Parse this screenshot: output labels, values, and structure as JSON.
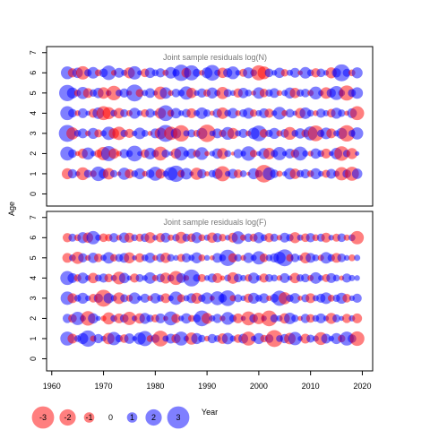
{
  "chart_data": {
    "type": "scatter",
    "encoding": "bubble",
    "x_label": "Year",
    "y_label": "Age",
    "x_ticks": [
      1960,
      1970,
      1980,
      1990,
      2000,
      2010,
      2020
    ],
    "y_ticks": [
      0,
      1,
      2,
      3,
      4,
      5,
      6,
      7
    ],
    "xlim": [
      1959,
      2022
    ],
    "ylim": [
      -0.6,
      7.3
    ],
    "years": [
      1963,
      1964,
      1965,
      1966,
      1967,
      1968,
      1969,
      1970,
      1971,
      1972,
      1973,
      1974,
      1975,
      1976,
      1977,
      1978,
      1979,
      1980,
      1981,
      1982,
      1983,
      1984,
      1985,
      1986,
      1987,
      1988,
      1989,
      1990,
      1991,
      1992,
      1993,
      1994,
      1995,
      1996,
      1997,
      1998,
      1999,
      2000,
      2001,
      2002,
      2003,
      2004,
      2005,
      2006,
      2007,
      2008,
      2009,
      2010,
      2011,
      2012,
      2013,
      2014,
      2015,
      2016,
      2017,
      2018,
      2019
    ],
    "ages": [
      1,
      2,
      3,
      4,
      5,
      6
    ],
    "colors": {
      "negative": "#ff0000",
      "positive": "#0000ff"
    },
    "opacity": 0.5,
    "panels": [
      {
        "title": "Joint sample residuals log(N)",
        "residuals": {
          "1": [
            -1.5,
            1.2,
            0.5,
            -1.8,
            1.0,
            -0.8,
            2.1,
            1.3,
            -1.6,
            0.9,
            -0.4,
            1.7,
            -1.2,
            0.8,
            1.5,
            -0.6,
            1.1,
            2.0,
            -1.3,
            0.7,
            1.9,
            2.4,
            -0.9,
            1.6,
            0.4,
            -1.7,
            1.2,
            -0.5,
            0.9,
            1.4,
            -2.2,
            0.6,
            1.3,
            -1.1,
            0.8,
            -0.3,
            1.5,
            0.9,
            -2.6,
            1.8,
            1.1,
            -0.7,
            0.5,
            1.6,
            -1.4,
            0.9,
            1.2,
            -0.8,
            1.5,
            0.6,
            -1.0,
            1.3,
            0.7,
            -1.9,
            1.1,
            -2.0,
            1.4
          ],
          "2": [
            2.0,
            1.1,
            -0.5,
            -1.3,
            1.7,
            0.6,
            -1.0,
            -1.9,
            2.2,
            -1.4,
            -0.6,
            1.2,
            0.8,
            2.3,
            0.5,
            -1.1,
            1.6,
            0.9,
            -2.0,
            1.0,
            0.4,
            -1.4,
            2.0,
            0.7,
            1.3,
            -0.9,
            1.8,
            -0.5,
            0.6,
            1.4,
            -1.5,
            0.8,
            -0.3,
            1.2,
            0.6,
            2.1,
            -0.9,
            0.5,
            1.5,
            -1.6,
            0.9,
            1.9,
            0.5,
            1.3,
            -1.1,
            2.0,
            0.7,
            -0.6,
            1.4,
            0.8,
            -1.3,
            0.5,
            1.6,
            -2.1,
            0.9,
            -1.5,
            0.4
          ],
          "3": [
            2.5,
            -1.7,
            0.8,
            1.3,
            -0.6,
            1.5,
            -1.0,
            0.7,
            1.9,
            -1.4,
            -1.9,
            0.9,
            -1.2,
            0.6,
            1.6,
            0.8,
            -0.5,
            1.3,
            -1.6,
            2.5,
            -1.9,
            1.4,
            -2.4,
            0.7,
            1.0,
            -0.8,
            1.5,
            -2.6,
            0.6,
            1.3,
            -0.9,
            1.8,
            -1.5,
            0.7,
            1.2,
            -0.6,
            1.6,
            2.3,
            -1.1,
            0.9,
            1.5,
            -0.7,
            1.1,
            -1.8,
            0.8,
            1.4,
            -1.0,
            2.0,
            -2.3,
            0.9,
            1.6,
            -1.3,
            0.7,
            1.5,
            -2.4,
            0.8,
            1.7
          ],
          "4": [
            2.0,
            1.1,
            -0.6,
            1.3,
            0.5,
            -1.2,
            1.6,
            -2.0,
            -1.7,
            0.8,
            -1.4,
            1.0,
            -0.7,
            1.5,
            0.6,
            -1.0,
            1.2,
            0.5,
            -1.5,
            2.3,
            -0.8,
            1.4,
            0.6,
            1.1,
            -1.3,
            0.7,
            1.6,
            0.9,
            -0.5,
            1.2,
            -1.6,
            0.8,
            1.4,
            -0.6,
            1.0,
            1.5,
            -0.9,
            0.7,
            1.3,
            -1.2,
            0.6,
            1.8,
            -0.7,
            1.1,
            0.5,
            -1.4,
            1.6,
            0.8,
            -0.6,
            1.2,
            0.7,
            -1.1,
            1.5,
            0.9,
            -0.5,
            1.3,
            -2.0
          ],
          "5": [
            2.4,
            1.5,
            -0.8,
            1.7,
            -1.3,
            0.9,
            1.4,
            -1.6,
            0.6,
            -2.1,
            0.8,
            1.2,
            -0.5,
            2.5,
            -1.0,
            0.7,
            1.3,
            0.5,
            -1.8,
            1.6,
            -0.6,
            1.1,
            0.8,
            1.9,
            -1.4,
            0.6,
            1.2,
            -0.9,
            1.5,
            0.7,
            -1.7,
            1.0,
            0.6,
            -1.2,
            1.4,
            0.8,
            -0.5,
            1.6,
            -1.1,
            0.9,
            1.3,
            -0.6,
            0.7,
            1.5,
            -1.4,
            0.9,
            1.1,
            -0.7,
            1.8,
            0.6,
            -1.6,
            1.2,
            2.0,
            0.8,
            -2.2,
            1.0,
            1.6
          ],
          "6": [
            1.8,
            -1.2,
            1.4,
            -1.9,
            0.9,
            1.6,
            -0.8,
            1.1,
            2.1,
            -0.6,
            1.3,
            0.7,
            -1.5,
            1.9,
            0.5,
            -1.1,
            1.4,
            0.8,
            1.2,
            -0.7,
            1.6,
            0.9,
            2.4,
            -1.3,
            2.2,
            1.0,
            -0.6,
            1.5,
            2.3,
            0.7,
            -1.4,
            1.2,
            1.8,
            0.6,
            -1.0,
            1.5,
            0.8,
            -2.2,
            -1.8,
            1.1,
            0.6,
            1.4,
            -0.9,
            0.7,
            1.3,
            -0.5,
            1.6,
            0.8,
            -1.2,
            1.1,
            0.6,
            -1.5,
            1.2,
            2.5,
            1.0,
            -0.8,
            1.5
          ]
        }
      },
      {
        "title": "Joint sample residuals log(F)",
        "residuals": {
          "1": [
            2.0,
            -1.3,
            0.8,
            1.5,
            2.4,
            -0.7,
            1.2,
            0.6,
            -1.6,
            1.9,
            0.9,
            -1.1,
            1.4,
            0.5,
            1.7,
            2.2,
            -0.8,
            1.1,
            -2.3,
            0.7,
            1.3,
            -1.2,
            2.0,
            0.6,
            -1.7,
            1.5,
            0.9,
            -0.6,
            1.2,
            0.8,
            -1.4,
            1.6,
            0.7,
            -1.1,
            1.3,
            -2.0,
            0.6,
            1.5,
            -0.9,
            1.1,
            -2.5,
            0.8,
            1.2,
            -1.6,
            1.9,
            0.5,
            -1.3,
            1.0,
            0.7,
            -1.8,
            1.3,
            0.6,
            1.5,
            -0.9,
            2.0,
            1.1,
            -2.1
          ],
          "2": [
            1.2,
            -1.1,
            1.9,
            0.7,
            -2.1,
            1.4,
            0.5,
            -0.6,
            -1.7,
            0.8,
            -1.3,
            1.1,
            -1.9,
            0.6,
            -1.4,
            1.5,
            0.9,
            -1.0,
            1.3,
            -0.5,
            2.0,
            -1.2,
            0.6,
            1.4,
            -0.8,
            1.0,
            2.3,
            -1.5,
            0.7,
            1.2,
            -0.6,
            1.8,
            0.9,
            -1.3,
            0.5,
            -2.0,
            1.1,
            -1.6,
            0.6,
            -2.3,
            1.0,
            0.7,
            -1.4,
            1.6,
            0.9,
            -0.5,
            1.2,
            -1.1,
            0.8,
            1.3,
            0.6,
            -1.5,
            1.0,
            0.5,
            -1.2,
            0.7,
            -1.3
          ],
          "3": [
            1.9,
            -1.3,
            0.8,
            1.5,
            0.6,
            -1.1,
            1.2,
            -2.5,
            1.4,
            0.7,
            -1.6,
            1.0,
            -0.8,
            1.6,
            0.5,
            1.2,
            -0.6,
            1.4,
            0.8,
            -1.3,
            0.6,
            1.9,
            -1.0,
            0.7,
            1.3,
            -1.5,
            0.9,
            1.6,
            -0.5,
            2.0,
            1.1,
            2.3,
            -0.7,
            1.0,
            0.6,
            -1.2,
            1.5,
            0.8,
            1.3,
            -0.6,
            1.1,
            2.2,
            -1.7,
            0.9,
            1.4,
            -0.5,
            1.0,
            -1.3,
            0.7,
            1.2,
            1.6,
            -0.8,
            0.9,
            1.5,
            -1.1,
            0.6,
            1.2
          ],
          "4": [
            2.0,
            1.3,
            -0.9,
            1.5,
            0.6,
            -1.4,
            0.8,
            1.2,
            -1.1,
            0.7,
            -1.8,
            1.4,
            0.5,
            -1.2,
            1.0,
            0.6,
            1.6,
            -0.7,
            1.1,
            -1.5,
            0.8,
            -2.0,
            1.3,
            -0.6,
            2.5,
            0.9,
            -1.0,
            0.6,
            1.2,
            -1.3,
            -0.5,
            0.8,
            -1.6,
            1.1,
            0.7,
            -0.9,
            1.5,
            0.6,
            -1.2,
            1.0,
            0.8,
            -0.6,
            1.3,
            0.5,
            -1.4,
            0.9,
            1.1,
            -0.7,
            1.6,
            0.6,
            -1.0,
            1.3,
            0.8,
            -0.5,
            1.2,
            0.7,
            0.6
          ],
          "5": [
            -1.3,
            0.8,
            -1.7,
            1.2,
            -0.6,
            1.4,
            -1.1,
            0.7,
            1.6,
            -0.9,
            1.0,
            1.3,
            -1.5,
            0.5,
            -1.2,
            0.8,
            1.4,
            -0.6,
            1.1,
            -1.4,
            0.9,
            0.6,
            -1.0,
            1.2,
            0.7,
            1.5,
            -0.8,
            0.6,
            -0.5,
            1.3,
            0.8,
            2.4,
            -1.2,
            0.9,
            -0.6,
            1.4,
            0.7,
            1.9,
            -1.1,
            0.8,
            1.2,
            1.7,
            2.5,
            -0.9,
            1.1,
            0.6,
            -1.5,
            1.3,
            0.8,
            -0.7,
            1.6,
            0.9,
            -1.3,
            1.1,
            0.6,
            -0.8,
            0.7
          ],
          "6": [
            -1.2,
            1.0,
            -0.8,
            1.5,
            -1.4,
            1.9,
            0.7,
            -1.1,
            -0.9,
            1.2,
            -0.6,
            1.4,
            -1.3,
            0.8,
            -1.0,
            1.1,
            -1.5,
            0.6,
            -1.2,
            1.3,
            -0.7,
            0.9,
            -1.6,
            1.0,
            -1.1,
            1.5,
            -0.8,
            0.7,
            -1.4,
            1.2,
            -0.9,
            0.6,
            -1.3,
            1.8,
            -0.7,
            1.1,
            -1.0,
            1.5,
            0.8,
            -1.2,
            1.0,
            -0.6,
            1.3,
            0.9,
            -1.5,
            0.7,
            -1.1,
            1.2,
            -0.8,
            1.0,
            -1.3,
            0.6,
            -1.0,
            1.1,
            -0.7,
            0.8,
            -1.9
          ]
        }
      }
    ],
    "legend": {
      "values": [
        -3,
        -2,
        -1,
        0,
        1,
        2,
        3
      ],
      "labels": [
        "-3",
        "-2",
        "-1",
        "0",
        "1",
        "2",
        "3"
      ]
    }
  }
}
